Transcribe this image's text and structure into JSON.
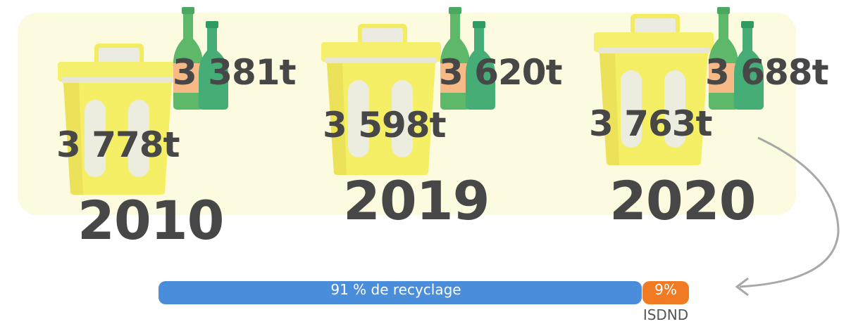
{
  "groups": [
    {
      "year": "2010",
      "bin": "3 778t",
      "glass": "3 381t"
    },
    {
      "year": "2019",
      "bin": "3 598t",
      "glass": "3 620t"
    },
    {
      "year": "2020",
      "bin": "3 763t",
      "glass": "3 688t"
    }
  ],
  "bar": {
    "recycling": "91 % de recyclage",
    "landfill": "9%",
    "landfill_name": "ISDND"
  }
}
